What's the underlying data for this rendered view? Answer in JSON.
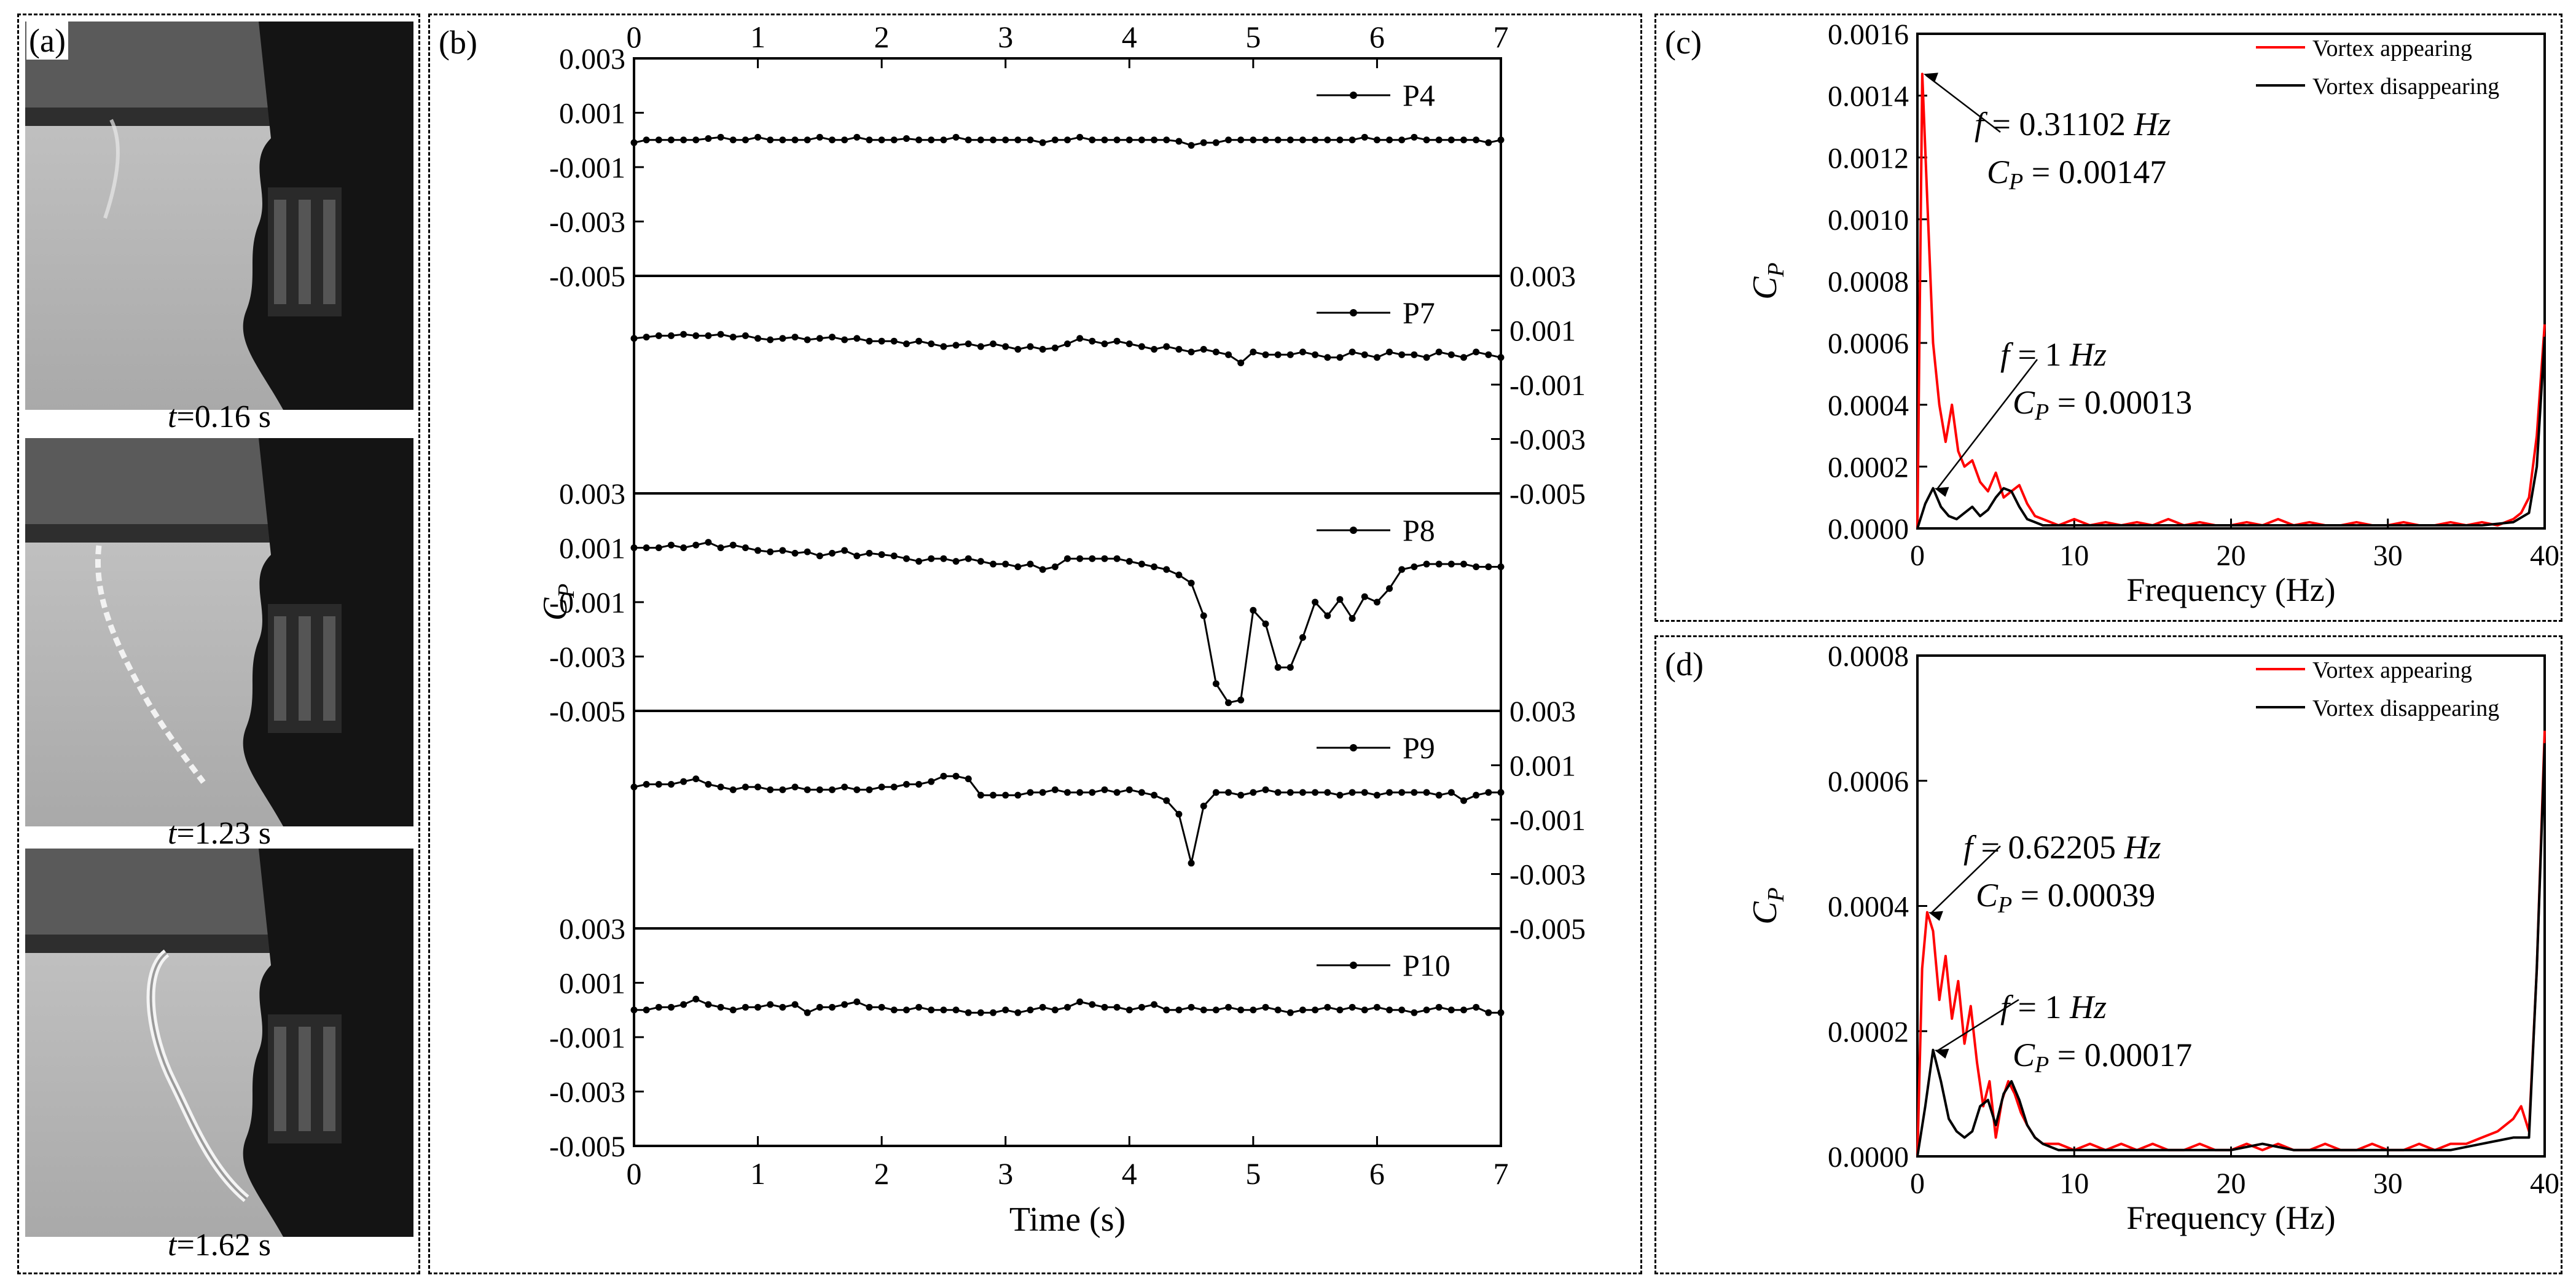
{
  "panel_a": {
    "label": "(a)",
    "snapshots": [
      {
        "t_var": "t",
        "t_val": "=0.16 s"
      },
      {
        "t_var": "t",
        "t_val": "=1.23 s"
      },
      {
        "t_var": "t",
        "t_val": "=1.62 s"
      }
    ]
  },
  "colors": {
    "appearing": "#ff0000",
    "disappearing": "#000000"
  },
  "chart_data": [
    {
      "id": "b",
      "type": "line",
      "panel_label": "(b)",
      "xlabel": "Time (s)",
      "ylabel": "C",
      "ylabel_sub": "P",
      "xlim": [
        0,
        7
      ],
      "xticks": [
        "0",
        "1",
        "2",
        "3",
        "4",
        "5",
        "6",
        "7"
      ],
      "ylim": [
        -0.005,
        0.003
      ],
      "left_ticks": [
        "0.003",
        "0.001",
        "-0.001",
        "-0.003",
        "-0.005"
      ],
      "right_ticks": [
        "0.003",
        "0.001",
        "-0.001",
        "-0.003",
        "-0.005"
      ],
      "x": [
        0,
        0.1,
        0.2,
        0.3,
        0.4,
        0.5,
        0.6,
        0.7,
        0.8,
        0.9,
        1.0,
        1.1,
        1.2,
        1.3,
        1.4,
        1.5,
        1.6,
        1.7,
        1.8,
        1.9,
        2.0,
        2.1,
        2.2,
        2.3,
        2.4,
        2.5,
        2.6,
        2.7,
        2.8,
        2.9,
        3.0,
        3.1,
        3.2,
        3.3,
        3.4,
        3.5,
        3.6,
        3.7,
        3.8,
        3.9,
        4.0,
        4.1,
        4.2,
        4.3,
        4.4,
        4.5,
        4.6,
        4.7,
        4.8,
        4.9,
        5.0,
        5.1,
        5.2,
        5.3,
        5.4,
        5.5,
        5.6,
        5.7,
        5.8,
        5.9,
        6.0,
        6.1,
        6.2,
        6.3,
        6.4,
        6.5,
        6.6,
        6.7,
        6.8,
        6.9,
        7.0
      ],
      "series": [
        {
          "name": "P4",
          "values": [
            -0.0001,
            0,
            0,
            0,
            0,
            0,
            5e-05,
            0.0001,
            0,
            0,
            0.0001,
            0,
            0,
            0,
            0,
            0.0001,
            0,
            0,
            0.0001,
            0,
            0,
            0,
            5e-05,
            0,
            0,
            0,
            0.0001,
            0,
            0,
            0,
            0,
            0,
            0,
            -0.0001,
            0,
            0,
            0.0001,
            0,
            0,
            0,
            0,
            0,
            0,
            0,
            -5e-05,
            -0.0002,
            -0.0001,
            -0.0001,
            0,
            0,
            0,
            0,
            0,
            0,
            0,
            0,
            0,
            0,
            0,
            0.0001,
            0,
            0,
            0,
            0.0001,
            0,
            0,
            0,
            0,
            0,
            -0.0001,
            0
          ]
        },
        {
          "name": "P7",
          "values": [
            0.0007,
            0.00075,
            0.0008,
            0.0008,
            0.00085,
            0.0008,
            0.0008,
            0.00085,
            0.00075,
            0.0008,
            0.0007,
            0.00065,
            0.0007,
            0.00075,
            0.00065,
            0.0007,
            0.00075,
            0.00065,
            0.0007,
            0.0006,
            0.0006,
            0.0006,
            0.0005,
            0.0006,
            0.0005,
            0.0004,
            0.00045,
            0.0005,
            0.0004,
            0.0005,
            0.0004,
            0.0003,
            0.0004,
            0.0003,
            0.00035,
            0.0005,
            0.0007,
            0.0006,
            0.0005,
            0.0006,
            0.0005,
            0.0004,
            0.0003,
            0.0004,
            0.0003,
            0.0002,
            0.0003,
            0.0002,
            0.0001,
            -0.0002,
            0.0002,
            0.0001,
            0.0001,
            0.0001,
            0.0002,
            0.0001,
            0,
            0,
            0.0002,
            0.0001,
            0,
            0.0002,
            0.0001,
            0.0001,
            0,
            0.0002,
            0.0001,
            0,
            0.0002,
            0.0001,
            0
          ]
        },
        {
          "name": "P8",
          "values": [
            0.001,
            0.001,
            0.001,
            0.0011,
            0.001,
            0.0011,
            0.0012,
            0.001,
            0.0011,
            0.001,
            0.0009,
            0.00085,
            0.0009,
            0.0008,
            0.00085,
            0.0007,
            0.0008,
            0.0009,
            0.0007,
            0.0008,
            0.00075,
            0.0007,
            0.0006,
            0.0005,
            0.0006,
            0.0006,
            0.0005,
            0.0006,
            0.0005,
            0.0004,
            0.0004,
            0.0003,
            0.0004,
            0.0002,
            0.0003,
            0.0006,
            0.0006,
            0.0006,
            0.0006,
            0.0006,
            0.0005,
            0.0004,
            0.0003,
            0.0002,
            0,
            -0.0003,
            -0.0015,
            -0.004,
            -0.0047,
            -0.0046,
            -0.0013,
            -0.0018,
            -0.0034,
            -0.0034,
            -0.0023,
            -0.001,
            -0.0015,
            -0.0009,
            -0.0016,
            -0.0008,
            -0.001,
            -0.0005,
            0.0002,
            0.0003,
            0.0004,
            0.0004,
            0.0004,
            0.0004,
            0.0003,
            0.0003,
            0.0003
          ]
        },
        {
          "name": "P9",
          "values": [
            0.0002,
            0.0003,
            0.0003,
            0.0003,
            0.0004,
            0.0005,
            0.0003,
            0.0002,
            0.0001,
            0.0002,
            0.0002,
            0.0001,
            0.0001,
            0.0002,
            0.0001,
            0.0001,
            0.0001,
            0.0002,
            0.0001,
            0.0001,
            0.0002,
            0.0002,
            0.0003,
            0.0003,
            0.0004,
            0.0006,
            0.0006,
            0.0005,
            -0.0001,
            -0.0001,
            -0.0001,
            -0.0001,
            0,
            0,
            0.0001,
            0,
            0,
            0,
            0.0001,
            0,
            0.0001,
            0,
            -0.0001,
            -0.0003,
            -0.0008,
            -0.0026,
            -0.0005,
            0,
            0,
            -0.0001,
            0,
            0.0001,
            0,
            0,
            0,
            0,
            0,
            -0.0001,
            0,
            0,
            -0.0001,
            0,
            0,
            0,
            0,
            -0.0001,
            0,
            -0.0003,
            -0.0001,
            0,
            0
          ]
        },
        {
          "name": "P10",
          "values": [
            0,
            0,
            0.0001,
            0.0001,
            0.0002,
            0.0004,
            0.0002,
            0.0001,
            0,
            0.0001,
            0.0001,
            0.0002,
            0.0001,
            0.0002,
            -0.0001,
            0.0001,
            0.0001,
            0.0002,
            0.0003,
            0.0001,
            0.0001,
            0,
            0,
            0.0001,
            0,
            0,
            0,
            -0.0001,
            -0.0001,
            -0.0001,
            0,
            -0.0001,
            0,
            0.0001,
            0,
            0.0001,
            0.0003,
            0.0002,
            0.0001,
            0.0001,
            0,
            0.0001,
            0.0002,
            0,
            0,
            0.0001,
            0,
            0,
            0.0001,
            0,
            0,
            0.0001,
            0,
            -0.0001,
            0,
            0,
            0.0001,
            0,
            0.0001,
            0,
            0.0001,
            0,
            0,
            -0.0001,
            0,
            0.0001,
            0,
            0,
            0.0001,
            -0.0001,
            -0.0001
          ]
        }
      ]
    },
    {
      "id": "c",
      "type": "line",
      "panel_label": "(c)",
      "xlabel": "Frequency (Hz)",
      "ylabel": "C",
      "ylabel_sub": "P",
      "xlim": [
        0,
        40
      ],
      "xticks": [
        "0",
        "10",
        "20",
        "30",
        "40"
      ],
      "ylim": [
        0,
        0.0016
      ],
      "yticks": [
        "0.0000",
        "0.0002",
        "0.0004",
        "0.0006",
        "0.0008",
        "0.0010",
        "0.0012",
        "0.0014",
        "0.0016"
      ],
      "legend_position": "top-right",
      "series": [
        {
          "name": "Vortex appearing",
          "x": [
            0,
            0.31102,
            0.6,
            1.0,
            1.4,
            1.8,
            2.2,
            2.6,
            3.0,
            3.5,
            4.0,
            4.5,
            5.0,
            5.5,
            6.0,
            6.5,
            7.0,
            7.5,
            8.0,
            9,
            10,
            11,
            12,
            13,
            14,
            15,
            16,
            17,
            18,
            19,
            20,
            21,
            22,
            23,
            24,
            25,
            26,
            27,
            28,
            29,
            30,
            31,
            32,
            33,
            34,
            35,
            36,
            37,
            38,
            38.5,
            39,
            39.5,
            40
          ],
          "values": [
            0,
            0.00147,
            0.0011,
            0.0006,
            0.0004,
            0.00028,
            0.0004,
            0.00025,
            0.0002,
            0.00022,
            0.00015,
            0.00012,
            0.00018,
            0.0001,
            0.00012,
            0.00014,
            8e-05,
            4e-05,
            3e-05,
            1e-05,
            3e-05,
            1e-05,
            2e-05,
            1e-05,
            2e-05,
            1e-05,
            3e-05,
            1e-05,
            2e-05,
            1e-05,
            1e-05,
            2e-05,
            1e-05,
            3e-05,
            1e-05,
            2e-05,
            1e-05,
            1e-05,
            2e-05,
            1e-05,
            1e-05,
            2e-05,
            1e-05,
            1e-05,
            2e-05,
            1e-05,
            2e-05,
            1e-05,
            3e-05,
            5e-05,
            0.0001,
            0.0003,
            0.00066
          ]
        },
        {
          "name": "Vortex disappearing",
          "x": [
            0,
            0.5,
            1.0,
            1.5,
            2.0,
            2.5,
            3.0,
            3.5,
            4.0,
            4.5,
            5.0,
            5.5,
            6.0,
            6.5,
            7.0,
            7.5,
            8.0,
            9,
            10,
            12,
            14,
            16,
            18,
            20,
            22,
            24,
            26,
            28,
            30,
            32,
            34,
            36,
            38,
            39,
            39.5,
            40
          ],
          "values": [
            0,
            8e-05,
            0.00013,
            7e-05,
            4e-05,
            3e-05,
            5e-05,
            7e-05,
            4e-05,
            6e-05,
            0.0001,
            0.00013,
            0.00012,
            7e-05,
            3e-05,
            2e-05,
            1e-05,
            1e-05,
            1e-05,
            1e-05,
            1e-05,
            1e-05,
            1e-05,
            1e-05,
            1e-05,
            1e-05,
            1e-05,
            1e-05,
            1e-05,
            1e-05,
            1e-05,
            1e-05,
            2e-05,
            5e-05,
            0.0002,
            0.00062
          ]
        }
      ],
      "annotations": [
        {
          "id": "peak1",
          "x": 0.31102,
          "y": 0.00147,
          "line1_var": "f",
          "line1_val": " = 0.31102 ",
          "line1_unit": "Hz",
          "line2_var": "C",
          "line2_sub": "P",
          "line2_val": " = 0.00147"
        },
        {
          "id": "peak2",
          "x": 1.0,
          "y": 0.00013,
          "line1_var": "f",
          "line1_val": " = 1 ",
          "line1_unit": "Hz",
          "line2_var": "C",
          "line2_sub": "P",
          "line2_val": " = 0.00013"
        }
      ]
    },
    {
      "id": "d",
      "type": "line",
      "panel_label": "(d)",
      "xlabel": "Frequency (Hz)",
      "ylabel": "C",
      "ylabel_sub": "P",
      "xlim": [
        0,
        40
      ],
      "xticks": [
        "0",
        "10",
        "20",
        "30",
        "40"
      ],
      "ylim": [
        0,
        0.0008
      ],
      "yticks": [
        "0.0000",
        "0.0002",
        "0.0004",
        "0.0006",
        "0.0008"
      ],
      "legend_position": "top-right",
      "series": [
        {
          "name": "Vortex appearing",
          "x": [
            0,
            0.3,
            0.62205,
            1.0,
            1.4,
            1.8,
            2.2,
            2.6,
            3.0,
            3.4,
            3.8,
            4.2,
            4.6,
            5.0,
            5.4,
            5.8,
            6.2,
            6.6,
            7.0,
            7.5,
            8,
            9,
            10,
            11,
            12,
            13,
            14,
            15,
            16,
            17,
            18,
            19,
            20,
            21,
            22,
            23,
            24,
            25,
            26,
            27,
            28,
            29,
            30,
            31,
            32,
            33,
            34,
            35,
            36,
            37,
            38,
            38.5,
            39,
            39.5,
            40
          ],
          "values": [
            0,
            0.0003,
            0.00039,
            0.00036,
            0.00025,
            0.00032,
            0.00022,
            0.00028,
            0.00018,
            0.00024,
            0.00015,
            8e-05,
            0.00012,
            3e-05,
            9e-05,
            0.00012,
            0.0001,
            7e-05,
            5e-05,
            3e-05,
            2e-05,
            2e-05,
            1e-05,
            2e-05,
            1e-05,
            2e-05,
            1e-05,
            2e-05,
            1e-05,
            1e-05,
            2e-05,
            1e-05,
            1e-05,
            2e-05,
            1e-05,
            2e-05,
            1e-05,
            1e-05,
            2e-05,
            1e-05,
            1e-05,
            2e-05,
            1e-05,
            1e-05,
            2e-05,
            1e-05,
            2e-05,
            2e-05,
            3e-05,
            4e-05,
            6e-05,
            8e-05,
            4e-05,
            0.0003,
            0.00068
          ]
        },
        {
          "name": "Vortex disappearing",
          "x": [
            0,
            0.5,
            1.0,
            1.5,
            2.0,
            2.5,
            3.0,
            3.5,
            4.0,
            4.5,
            5.0,
            5.5,
            6.0,
            6.5,
            7.0,
            7.5,
            8,
            9,
            10,
            12,
            14,
            16,
            18,
            20,
            22,
            24,
            26,
            28,
            30,
            32,
            34,
            36,
            38,
            39,
            39.5,
            40
          ],
          "values": [
            0,
            8e-05,
            0.00017,
            0.00012,
            6e-05,
            4e-05,
            3e-05,
            4e-05,
            8e-05,
            9e-05,
            5e-05,
            0.0001,
            0.00012,
            9e-05,
            5e-05,
            3e-05,
            2e-05,
            1e-05,
            1e-05,
            1e-05,
            1e-05,
            1e-05,
            1e-05,
            1e-05,
            2e-05,
            1e-05,
            1e-05,
            1e-05,
            1e-05,
            1e-05,
            1e-05,
            2e-05,
            3e-05,
            3e-05,
            0.0003,
            0.00066
          ]
        }
      ],
      "annotations": [
        {
          "id": "peak1",
          "x": 0.62205,
          "y": 0.00039,
          "line1_var": "f",
          "line1_val": " = 0.62205 ",
          "line1_unit": "Hz",
          "line2_var": "C",
          "line2_sub": "P",
          "line2_val": " = 0.00039"
        },
        {
          "id": "peak2",
          "x": 1.0,
          "y": 0.00017,
          "line1_var": "f",
          "line1_val": " = 1 ",
          "line1_unit": "Hz",
          "line2_var": "C",
          "line2_sub": "P",
          "line2_val": " = 0.00017"
        }
      ]
    }
  ]
}
